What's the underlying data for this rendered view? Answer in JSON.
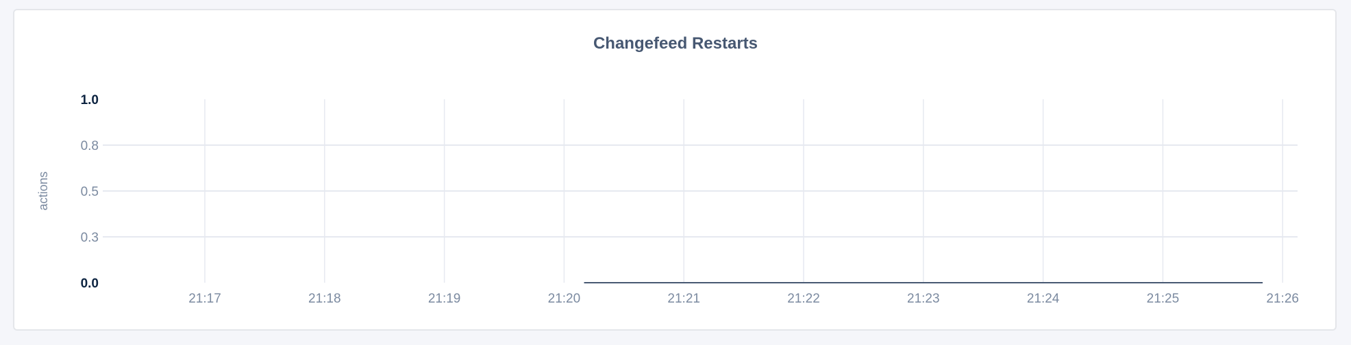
{
  "chart_data": {
    "type": "line",
    "title": "Changefeed Restarts",
    "xlabel": "",
    "ylabel": "actions",
    "ylim": [
      0,
      1.0
    ],
    "xlim": [
      "21:16:08",
      "21:26:15"
    ],
    "y_ticks": [
      {
        "value": 0.0,
        "label": "0.0"
      },
      {
        "value": 0.25,
        "label": "0.3"
      },
      {
        "value": 0.5,
        "label": "0.5"
      },
      {
        "value": 0.75,
        "label": "0.8"
      },
      {
        "value": 1.0,
        "label": "1.0"
      }
    ],
    "x_ticks": [
      "21:17",
      "21:18",
      "21:19",
      "21:20",
      "21:21",
      "21:22",
      "21:23",
      "21:24",
      "21:25",
      "21:26"
    ],
    "grid": true,
    "series": [
      {
        "x": [
          "21:20:10",
          "21:25:50"
        ],
        "y": [
          0,
          0
        ],
        "color": "#475872"
      }
    ]
  }
}
